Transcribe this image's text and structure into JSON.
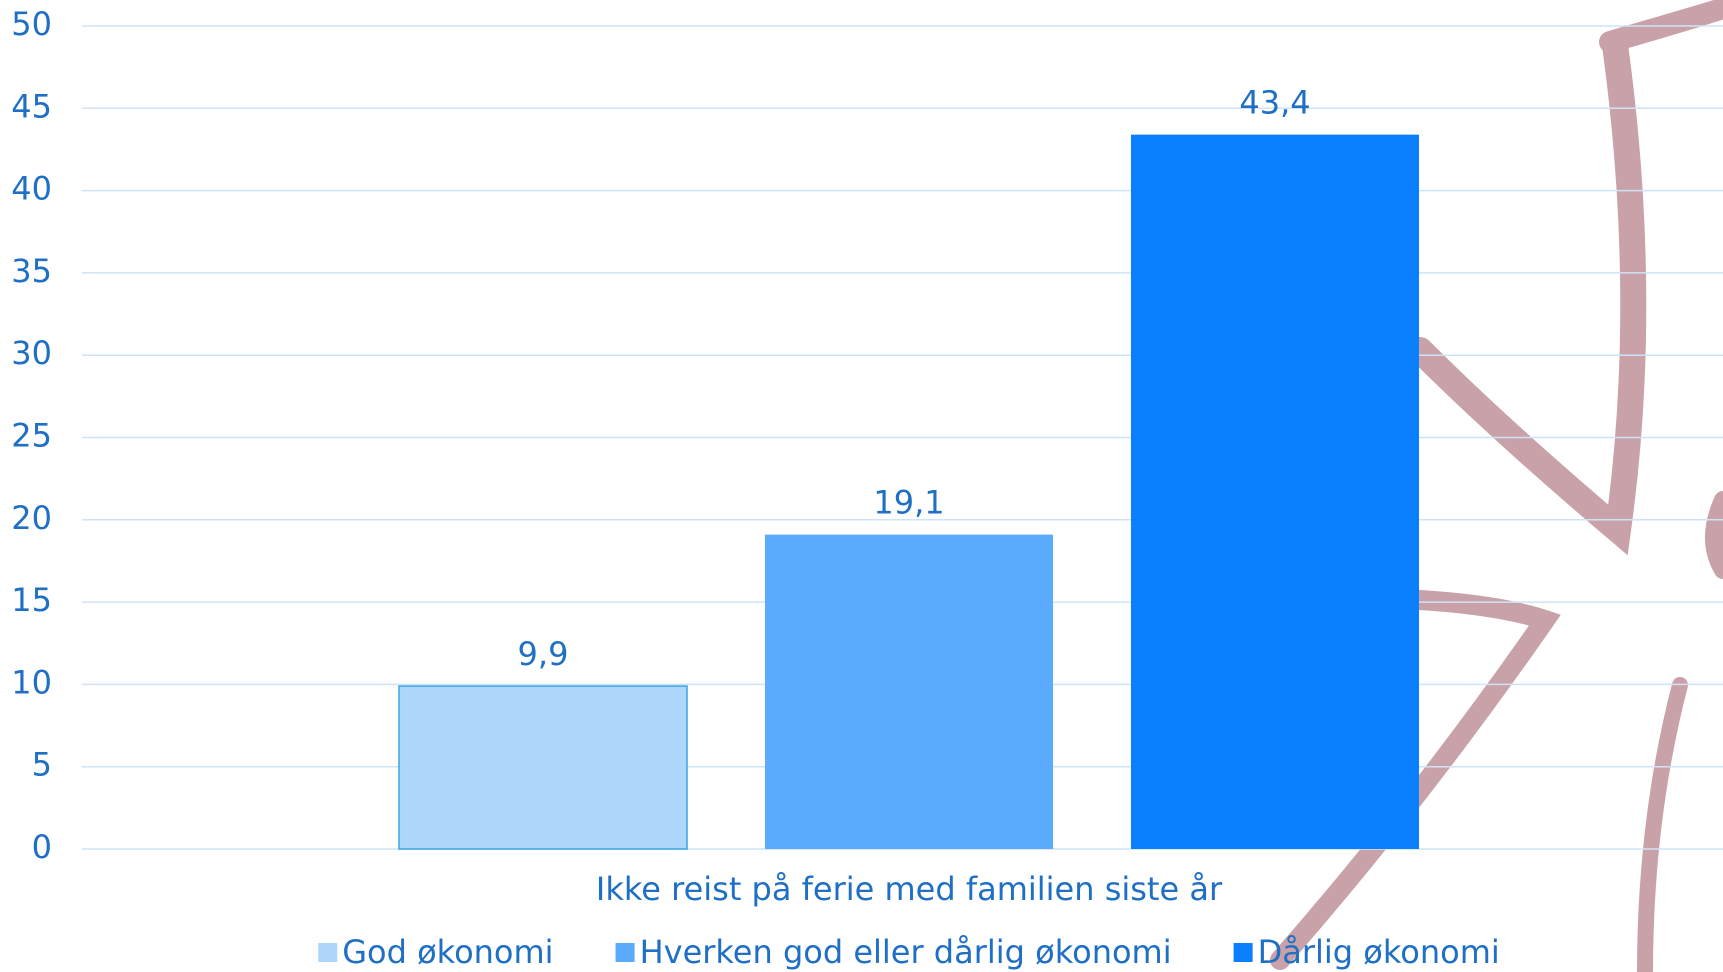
{
  "chart_data": {
    "type": "bar",
    "x_label": "Ikke reist på ferie med familien siste år",
    "categories": [
      "Ikke reist på ferie med familien siste år"
    ],
    "series": [
      {
        "name": "God økonomi",
        "color": "#aed6fb",
        "values": [
          9.9
        ],
        "value_labels": [
          "9,9"
        ]
      },
      {
        "name": "Hverken god eller dårlig økonomi",
        "color": "#5aabfd",
        "values": [
          19.1
        ],
        "value_labels": [
          "19,1"
        ]
      },
      {
        "name": "Dårlig økonomi",
        "color": "#0a80fd",
        "values": [
          43.4
        ],
        "value_labels": [
          "43,4"
        ]
      }
    ],
    "ylim": [
      0,
      50
    ],
    "yticks": [
      0,
      5,
      10,
      15,
      20,
      25,
      30,
      35,
      40,
      45,
      50
    ],
    "grid": true,
    "legend": "bottom"
  }
}
